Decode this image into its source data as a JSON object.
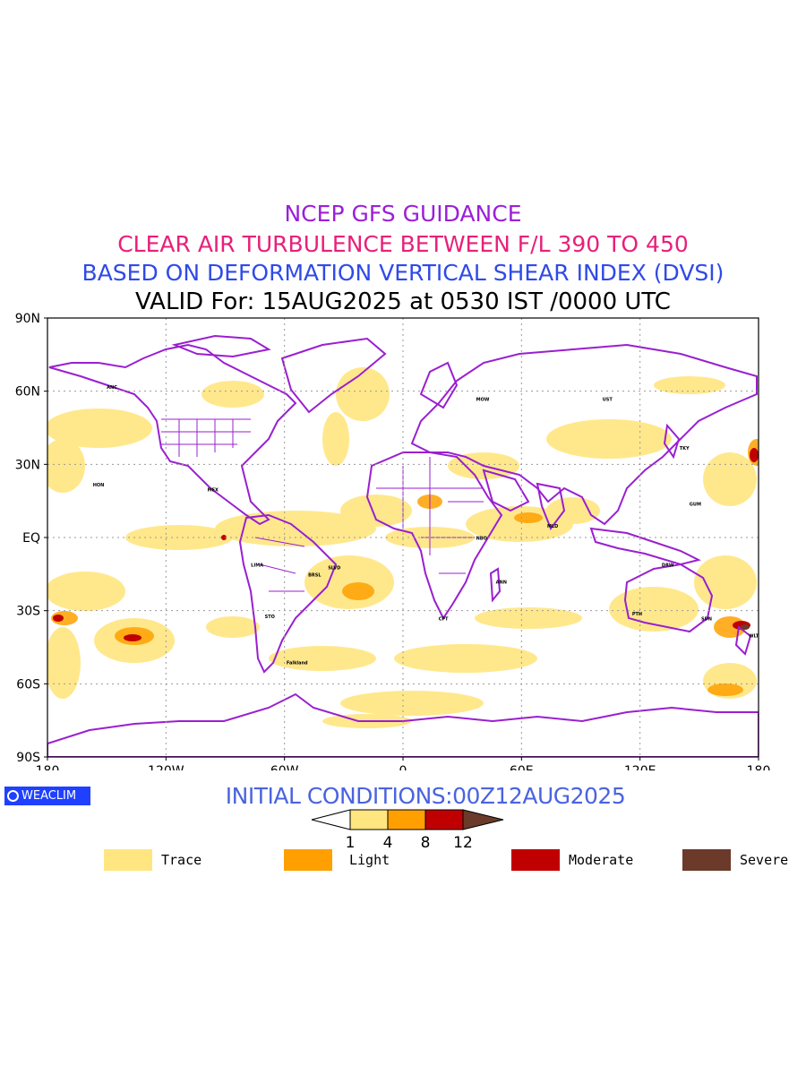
{
  "title": {
    "line1": "NCEP GFS GUIDANCE",
    "line2": "CLEAR AIR TURBULENCE BETWEEN F/L 390 TO 450",
    "line3": "BASED ON DEFORMATION VERTICAL SHEAR INDEX (DVSI)",
    "line4": "VALID For: 15AUG2025 at 0530 IST /0000 UTC"
  },
  "colors": {
    "line1": "#9b1fd8",
    "line2": "#e8207a",
    "line3": "#2f4ae8",
    "line4": "#000000",
    "initial": "#4a63e0",
    "coastline": "#9a1fd0",
    "trace": "#ffe680",
    "light": "#ffa000",
    "moderate": "#c00000",
    "severe": "#6b3a2a",
    "logo_bg": "#1f40ff"
  },
  "map": {
    "lat_labels": [
      "90N",
      "60N",
      "30N",
      "EQ",
      "30S",
      "60S",
      "90S"
    ],
    "lon_labels": [
      "180",
      "120W",
      "60W",
      "0",
      "60E",
      "120E",
      "180"
    ],
    "extent": {
      "lon": [
        -180,
        180
      ],
      "lat": [
        -90,
        90
      ]
    },
    "grid": "dotted every 30° latitude and 60° longitude",
    "place_labels": [
      {
        "text": "ANC",
        "lon": -150,
        "lat": 61
      },
      {
        "text": "MEX",
        "lon": -99,
        "lat": 19
      },
      {
        "text": "HON",
        "lon": -157,
        "lat": 21
      },
      {
        "text": "LIMA",
        "lon": -77,
        "lat": -12
      },
      {
        "text": "BRSL",
        "lon": -48,
        "lat": -16
      },
      {
        "text": "SLVD",
        "lon": -38,
        "lat": -13
      },
      {
        "text": "STO",
        "lon": -70,
        "lat": -33
      },
      {
        "text": "Falkland",
        "lon": -59,
        "lat": -52
      },
      {
        "text": "CPT",
        "lon": 18,
        "lat": -34
      },
      {
        "text": "MOW",
        "lon": 37,
        "lat": 56
      },
      {
        "text": "UST",
        "lon": 101,
        "lat": 56
      },
      {
        "text": "TKY",
        "lon": 140,
        "lat": 36
      },
      {
        "text": "GUM",
        "lon": 145,
        "lat": 13
      },
      {
        "text": "PTH",
        "lon": 116,
        "lat": -32
      },
      {
        "text": "SDN",
        "lon": 151,
        "lat": -34
      },
      {
        "text": "WLT",
        "lon": 175,
        "lat": -41
      },
      {
        "text": "DRW",
        "lon": 131,
        "lat": -12
      },
      {
        "text": "NBO",
        "lon": 37,
        "lat": -1
      },
      {
        "text": "MLD",
        "lon": 73,
        "lat": 4
      },
      {
        "text": "ANN",
        "lon": 47,
        "lat": -19
      }
    ]
  },
  "initial_conditions": "INITIAL CONDITIONS:00Z12AUG2025",
  "logo": "WEACLIM",
  "scale": {
    "ticks": [
      "1",
      "4",
      "8",
      "12"
    ],
    "bins": [
      {
        "from": 1,
        "to": 4,
        "color": "#ffe680"
      },
      {
        "from": 4,
        "to": 8,
        "color": "#ffa000"
      },
      {
        "from": 8,
        "to": 12,
        "color": "#c00000"
      }
    ]
  },
  "legend": [
    {
      "label": "Trace",
      "color": "#ffe680"
    },
    {
      "label": "Light",
      "color": "#ffa000"
    },
    {
      "label": "Moderate",
      "color": "#c00000"
    },
    {
      "label": "Severe",
      "color": "#6b3a2a"
    }
  ]
}
